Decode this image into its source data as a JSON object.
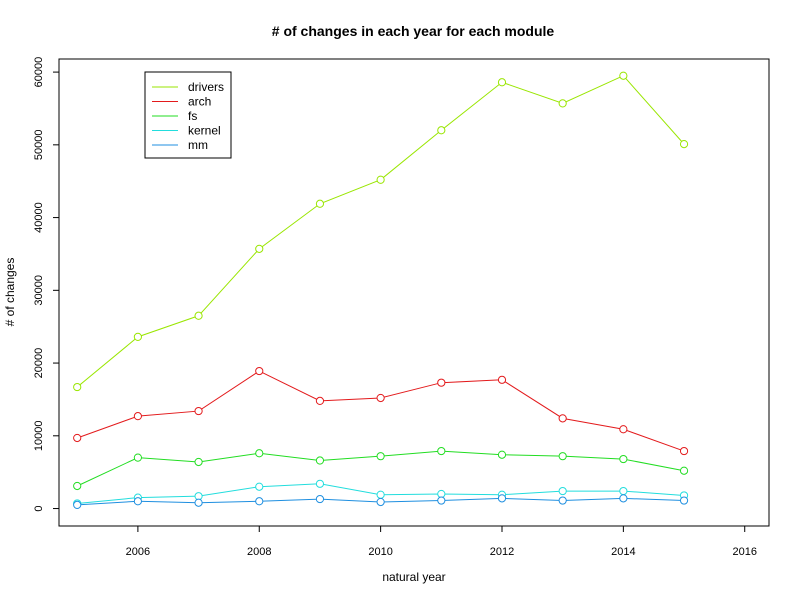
{
  "chart_data": {
    "type": "line",
    "title": "# of changes in each year for each module",
    "xlabel": "natural year",
    "ylabel": "# of changes",
    "x": [
      2005,
      2006,
      2007,
      2008,
      2009,
      2010,
      2011,
      2012,
      2013,
      2014,
      2015
    ],
    "xlim": [
      2004.7,
      2016.4
    ],
    "ylim": [
      -2400,
      61800
    ],
    "x_ticks": [
      2006,
      2008,
      2010,
      2012,
      2014,
      2016
    ],
    "y_ticks": [
      0,
      10000,
      20000,
      30000,
      40000,
      50000,
      60000
    ],
    "x_tick_labels": [
      "2006",
      "2008",
      "2010",
      "2012",
      "2014",
      "2016"
    ],
    "y_tick_labels": [
      "0",
      "10000",
      "20000",
      "30000",
      "40000",
      "50000",
      "60000"
    ],
    "grid": false,
    "legend_position": "top-left",
    "series": [
      {
        "name": "drivers",
        "color": "#99e600",
        "values": [
          16700,
          23600,
          26500,
          35700,
          41900,
          45200,
          52000,
          58600,
          55700,
          59500,
          50100
        ]
      },
      {
        "name": "arch",
        "color": "#e31a1c",
        "values": [
          9700,
          12700,
          13400,
          18900,
          14800,
          15200,
          17300,
          17700,
          12400,
          10900,
          7900
        ]
      },
      {
        "name": "fs",
        "color": "#22dd22",
        "values": [
          3100,
          7000,
          6400,
          7600,
          6600,
          7200,
          7900,
          7400,
          7200,
          6800,
          5200
        ]
      },
      {
        "name": "kernel",
        "color": "#22dddd",
        "values": [
          700,
          1500,
          1700,
          3000,
          3400,
          1900,
          2000,
          1900,
          2400,
          2400,
          1800
        ]
      },
      {
        "name": "mm",
        "color": "#1f8fe0",
        "values": [
          500,
          1000,
          800,
          1000,
          1300,
          900,
          1100,
          1400,
          1100,
          1400,
          1100
        ]
      }
    ]
  }
}
